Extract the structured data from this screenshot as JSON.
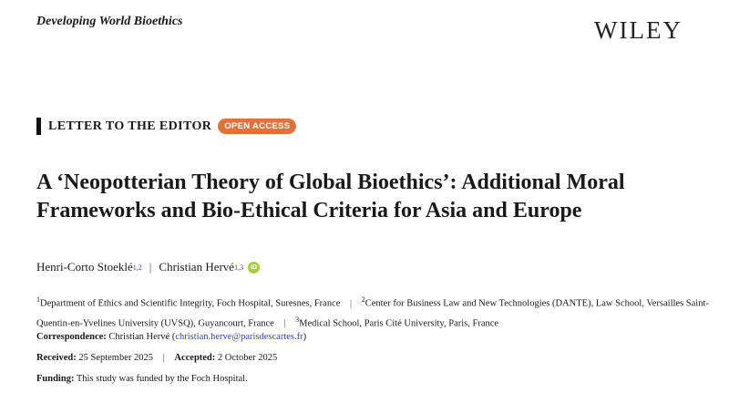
{
  "journal": "Developing World Bioethics",
  "publisher_logo": "WILEY",
  "section": {
    "label": "LETTER TO THE EDITOR",
    "badge": "OPEN ACCESS",
    "badge_color": "#e0733a"
  },
  "title": "A ‘Neopotterian Theory of Global Bioethics’: Additional Moral Frameworks and Bio-Ethical Criteria for Asia and Europe",
  "authors": [
    {
      "name": "Henri-Corto Stoeklé",
      "sup": "1,2"
    },
    {
      "name": "Christian Hervé",
      "sup": "1,3",
      "orcid_icon": "orcid-icon"
    }
  ],
  "separator": "|",
  "affiliations": [
    {
      "num": "1",
      "text": "Department of Ethics and Scientific Integrity, Foch Hospital, Suresnes, France"
    },
    {
      "num": "2",
      "text": "Center for Business Law and New Technologies (DANTE), Law School, Versailles Saint-Quentin-en-Yvelines University (UVSQ), Guyancourt, France"
    },
    {
      "num": "3",
      "text": "Medical School, Paris Cité University, Paris, France"
    }
  ],
  "correspondence": {
    "label": "Correspondence:",
    "name": "Christian Hervé",
    "email": "christian.herve@parisdescartes.fr"
  },
  "dates": {
    "received_label": "Received:",
    "received": "25 September 2025",
    "accepted_label": "Accepted:",
    "accepted": "2 October 2025"
  },
  "funding": {
    "label": "Funding:",
    "text": "This study was funded by the Foch Hospital."
  }
}
